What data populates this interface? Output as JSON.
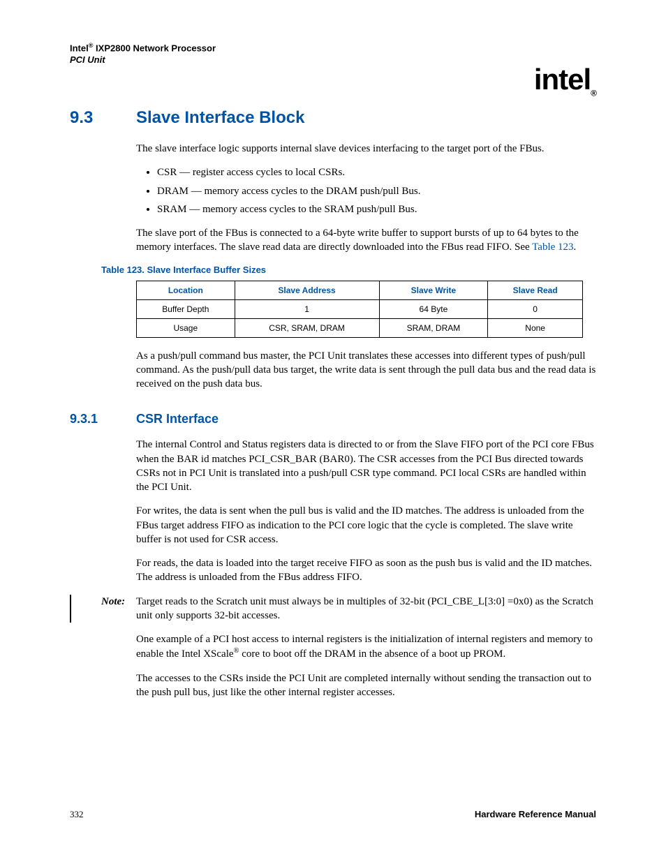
{
  "header": {
    "product_line1_prefix": "Intel",
    "product_line1_suffix": " IXP2800 Network Processor",
    "product_line2": "PCI Unit"
  },
  "logo": {
    "text": "intel",
    "reg": "®"
  },
  "section": {
    "number": "9.3",
    "title": "Slave Interface Block"
  },
  "intro_para": "The slave interface logic supports internal slave devices interfacing to the target port of the FBus.",
  "bullets": [
    "CSR — register access cycles to local CSRs.",
    "DRAM — memory access cycles to the DRAM push/pull Bus.",
    "SRAM — memory access cycles to the SRAM push/pull Bus."
  ],
  "para_after_list_pre": "The slave port of the FBus is connected to a 64-byte write buffer to support bursts of up to 64 bytes to the memory interfaces. The slave read data are directly downloaded into the FBus read FIFO. See ",
  "para_after_list_link": "Table 123",
  "para_after_list_post": ".",
  "table_caption": "Table 123. Slave Interface Buffer Sizes",
  "table": {
    "headers": [
      "Location",
      "Slave Address",
      "Slave Write",
      "Slave Read"
    ],
    "rows": [
      [
        "Buffer Depth",
        "1",
        "64 Byte",
        "0"
      ],
      [
        "Usage",
        "CSR, SRAM, DRAM",
        "SRAM, DRAM",
        "None"
      ]
    ]
  },
  "para_after_table": "As a push/pull command bus master, the PCI Unit translates these accesses into different types of push/pull command. As the push/pull data bus target, the write data is sent through the pull data bus and the read data is received on the push data bus.",
  "subsection": {
    "number": "9.3.1",
    "title": "CSR Interface"
  },
  "csr_paras": [
    "The internal Control and Status registers data is directed to or from the Slave FIFO port of the PCI core FBus when the BAR id matches PCI_CSR_BAR (BAR0). The CSR accesses from the PCI Bus directed towards CSRs not in PCI Unit is translated into a push/pull CSR type command. PCI local CSRs are handled within the PCI Unit.",
    "For writes, the data is sent when the pull bus is valid and the ID matches. The address is unloaded from the FBus target address FIFO as indication to the PCI core logic that the cycle is completed. The slave write buffer is not used for CSR access.",
    "For reads, the data is loaded into the target receive FIFO as soon as the push bus is valid and the ID matches. The address is unloaded from the FBus address FIFO."
  ],
  "note": {
    "label": "Note:",
    "text": "Target reads to the Scratch unit must always be in multiples of 32-bit (PCI_CBE_L[3:0] =0x0) as the Scratch unit only supports 32-bit accesses."
  },
  "post_note_para1_pre": "One example of a PCI host access to internal registers is the initialization of internal registers and memory to enable the Intel XScale",
  "post_note_para1_sup": "®",
  "post_note_para1_post": " core to boot off the DRAM in the absence of a boot up PROM.",
  "post_note_para2": "The accesses to the CSRs inside the PCI Unit are completed internally without sending the transaction out to the push pull bus, just like the other internal register accesses.",
  "footer": {
    "page": "332",
    "manual": "Hardware Reference Manual"
  }
}
